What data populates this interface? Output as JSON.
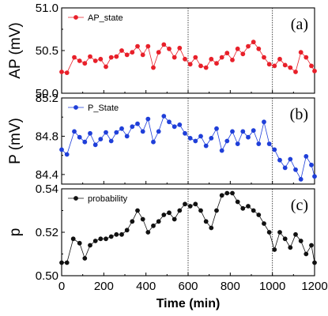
{
  "chart_data": [
    {
      "type": "line",
      "panel_label": "(a)",
      "ylabel": "AP (mV)",
      "xlim": [
        0,
        1200
      ],
      "ylim": [
        50.0,
        51.0
      ],
      "yticks": [
        "50.0",
        "50.5",
        "51.0"
      ],
      "ytick_values": [
        50.0,
        50.5,
        51.0
      ],
      "series": [
        {
          "name": "AP_state",
          "color": "#e8202a",
          "x": [
            0,
            25,
            60,
            85,
            110,
            135,
            160,
            185,
            210,
            235,
            260,
            285,
            310,
            335,
            360,
            385,
            410,
            435,
            460,
            485,
            510,
            535,
            560,
            585,
            610,
            635,
            660,
            685,
            710,
            735,
            760,
            785,
            810,
            835,
            860,
            885,
            910,
            935,
            960,
            985,
            1010,
            1035,
            1060,
            1085,
            1110,
            1135,
            1160,
            1185,
            1200
          ],
          "y": [
            50.25,
            50.24,
            50.42,
            50.38,
            50.35,
            50.43,
            50.38,
            50.4,
            50.31,
            50.42,
            50.43,
            50.5,
            50.45,
            50.48,
            50.55,
            50.45,
            50.55,
            50.3,
            50.48,
            50.57,
            50.52,
            50.42,
            50.53,
            50.4,
            50.34,
            50.42,
            50.32,
            50.3,
            50.4,
            50.35,
            50.42,
            50.47,
            50.39,
            50.52,
            50.46,
            50.55,
            50.6,
            50.52,
            50.42,
            50.34,
            50.32,
            50.4,
            50.33,
            50.3,
            50.25,
            50.48,
            50.42,
            50.32,
            50.26
          ]
        }
      ]
    },
    {
      "type": "line",
      "panel_label": "(b)",
      "ylabel": "P (mV)",
      "xlim": [
        0,
        1200
      ],
      "ylim": [
        84.3,
        85.2
      ],
      "yticks": [
        "84.4",
        "84.8",
        "85.2"
      ],
      "ytick_values": [
        84.4,
        84.8,
        85.2
      ],
      "series": [
        {
          "name": "P_State",
          "color": "#1f3fd9",
          "x": [
            0,
            25,
            60,
            85,
            110,
            135,
            160,
            185,
            210,
            235,
            260,
            285,
            310,
            335,
            360,
            385,
            410,
            435,
            460,
            485,
            510,
            535,
            560,
            585,
            610,
            635,
            660,
            685,
            710,
            735,
            760,
            785,
            810,
            835,
            860,
            885,
            910,
            935,
            960,
            985,
            1010,
            1035,
            1060,
            1085,
            1110,
            1135,
            1160,
            1185,
            1200
          ],
          "y": [
            84.66,
            84.61,
            84.85,
            84.79,
            84.74,
            84.83,
            84.71,
            84.77,
            84.84,
            84.75,
            84.84,
            84.88,
            84.8,
            84.9,
            84.93,
            84.85,
            84.98,
            84.74,
            84.85,
            85.01,
            84.95,
            84.9,
            84.92,
            84.83,
            84.78,
            84.75,
            84.8,
            84.7,
            84.78,
            84.88,
            84.65,
            84.75,
            84.85,
            84.72,
            84.85,
            84.79,
            84.86,
            84.72,
            84.95,
            84.72,
            84.66,
            84.55,
            84.47,
            84.56,
            84.45,
            84.35,
            84.59,
            84.5,
            84.38
          ]
        }
      ]
    },
    {
      "type": "line",
      "panel_label": "(c)",
      "ylabel": "p",
      "xlabel": "Time (min)",
      "xlim": [
        0,
        1200
      ],
      "xticks": [
        "0",
        "200",
        "400",
        "600",
        "800",
        "1000",
        "1200"
      ],
      "xtick_values": [
        0,
        200,
        400,
        600,
        800,
        1000,
        1200
      ],
      "ylim": [
        0.5,
        0.54
      ],
      "yticks": [
        "0.50",
        "0.52",
        "0.54"
      ],
      "ytick_values": [
        0.5,
        0.52,
        0.54
      ],
      "series": [
        {
          "name": "probability",
          "color": "#111111",
          "x": [
            0,
            25,
            55,
            85,
            110,
            135,
            160,
            185,
            210,
            235,
            260,
            285,
            310,
            335,
            360,
            385,
            410,
            435,
            460,
            485,
            510,
            535,
            560,
            585,
            610,
            635,
            660,
            685,
            710,
            735,
            760,
            785,
            810,
            835,
            860,
            885,
            910,
            935,
            960,
            985,
            1010,
            1035,
            1060,
            1085,
            1110,
            1135,
            1160,
            1185,
            1200
          ],
          "y": [
            0.506,
            0.506,
            0.517,
            0.515,
            0.508,
            0.514,
            0.516,
            0.517,
            0.517,
            0.518,
            0.519,
            0.519,
            0.521,
            0.525,
            0.53,
            0.526,
            0.52,
            0.523,
            0.525,
            0.528,
            0.529,
            0.526,
            0.53,
            0.533,
            0.532,
            0.533,
            0.53,
            0.525,
            0.522,
            0.53,
            0.537,
            0.538,
            0.538,
            0.534,
            0.531,
            0.532,
            0.53,
            0.528,
            0.524,
            0.52,
            0.512,
            0.52,
            0.517,
            0.513,
            0.519,
            0.516,
            0.51,
            0.514,
            0.506
          ]
        }
      ]
    }
  ],
  "vlines": [
    600,
    1000
  ],
  "vline_color": "#333333"
}
